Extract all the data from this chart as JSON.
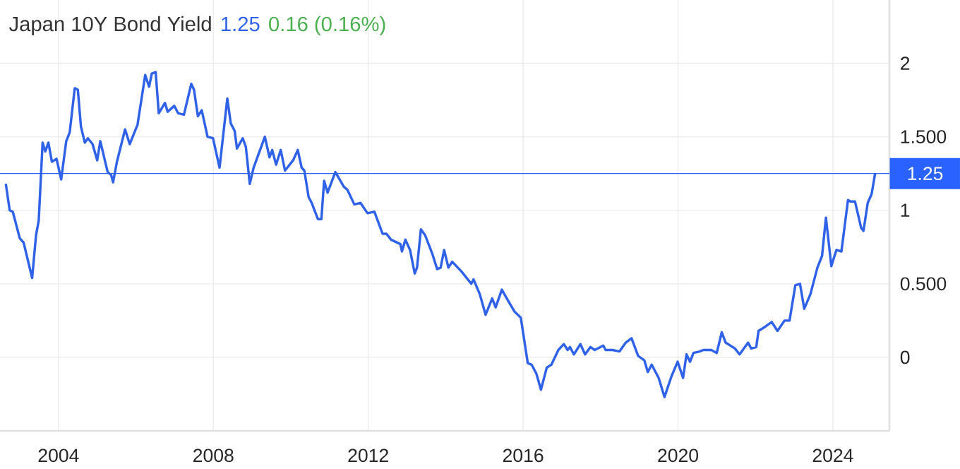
{
  "chart_data": {
    "type": "line",
    "title": "Japan 10Y Bond Yield",
    "annotations": [
      "1.25",
      "0.16 (0.16%)"
    ],
    "x": [
      2002.64,
      2002.74,
      2002.82,
      2003.0,
      2003.1,
      2003.32,
      2003.42,
      2003.49,
      2003.59,
      2003.66,
      2003.74,
      2003.83,
      2003.95,
      2004.07,
      2004.2,
      2004.29,
      2004.42,
      2004.5,
      2004.58,
      2004.68,
      2004.76,
      2004.88,
      2005.0,
      2005.08,
      2005.27,
      2005.36,
      2005.41,
      2005.51,
      2005.72,
      2005.84,
      2006.04,
      2006.24,
      2006.34,
      2006.41,
      2006.51,
      2006.59,
      2006.75,
      2006.82,
      2006.99,
      2007.09,
      2007.24,
      2007.43,
      2007.5,
      2007.6,
      2007.7,
      2007.85,
      2007.99,
      2008.16,
      2008.36,
      2008.45,
      2008.55,
      2008.61,
      2008.76,
      2008.84,
      2008.94,
      2009.04,
      2009.33,
      2009.45,
      2009.52,
      2009.62,
      2009.74,
      2009.85,
      2010.06,
      2010.18,
      2010.28,
      2010.35,
      2010.46,
      2010.54,
      2010.7,
      2010.79,
      2010.86,
      2010.95,
      2011.15,
      2011.37,
      2011.46,
      2011.64,
      2011.8,
      2011.98,
      2012.16,
      2012.37,
      2012.47,
      2012.59,
      2012.83,
      2012.87,
      2012.96,
      2013.08,
      2013.2,
      2013.26,
      2013.36,
      2013.47,
      2013.66,
      2013.78,
      2013.87,
      2013.96,
      2014.07,
      2014.17,
      2014.42,
      2014.66,
      2014.72,
      2014.88,
      2015.03,
      2015.2,
      2015.29,
      2015.45,
      2015.6,
      2015.78,
      2015.94,
      2016.12,
      2016.22,
      2016.34,
      2016.46,
      2016.61,
      2016.73,
      2016.91,
      2017.05,
      2017.15,
      2017.21,
      2017.31,
      2017.48,
      2017.6,
      2017.74,
      2017.85,
      2018.07,
      2018.13,
      2018.31,
      2018.49,
      2018.65,
      2018.8,
      2018.97,
      2019.13,
      2019.22,
      2019.32,
      2019.5,
      2019.65,
      2019.83,
      2019.99,
      2020.13,
      2020.22,
      2020.31,
      2020.4,
      2020.56,
      2020.65,
      2020.86,
      2021.0,
      2021.13,
      2021.23,
      2021.47,
      2021.59,
      2021.81,
      2021.89,
      2022.02,
      2022.08,
      2022.26,
      2022.42,
      2022.57,
      2022.75,
      2022.88,
      2023.03,
      2023.15,
      2023.26,
      2023.42,
      2023.6,
      2023.72,
      2023.82,
      2023.96,
      2024.09,
      2024.22,
      2024.39,
      2024.45,
      2024.57,
      2024.73,
      2024.79,
      2024.9,
      2025.0,
      2025.09
    ],
    "series": [
      {
        "color": "#2f62e6",
        "values": [
          1.18,
          1.0,
          0.99,
          0.81,
          0.78,
          0.54,
          0.83,
          0.93,
          1.46,
          1.4,
          1.46,
          1.33,
          1.35,
          1.21,
          1.47,
          1.53,
          1.83,
          1.82,
          1.57,
          1.46,
          1.49,
          1.45,
          1.34,
          1.47,
          1.26,
          1.24,
          1.19,
          1.33,
          1.55,
          1.45,
          1.58,
          1.92,
          1.84,
          1.93,
          1.94,
          1.66,
          1.73,
          1.67,
          1.71,
          1.66,
          1.65,
          1.86,
          1.82,
          1.64,
          1.68,
          1.5,
          1.49,
          1.29,
          1.76,
          1.59,
          1.54,
          1.42,
          1.49,
          1.43,
          1.18,
          1.29,
          1.5,
          1.36,
          1.41,
          1.31,
          1.41,
          1.27,
          1.34,
          1.41,
          1.29,
          1.27,
          1.09,
          1.05,
          0.94,
          0.94,
          1.2,
          1.12,
          1.26,
          1.16,
          1.14,
          1.04,
          1.05,
          0.98,
          0.99,
          0.84,
          0.84,
          0.8,
          0.77,
          0.72,
          0.8,
          0.73,
          0.57,
          0.61,
          0.87,
          0.83,
          0.7,
          0.6,
          0.61,
          0.73,
          0.61,
          0.65,
          0.58,
          0.5,
          0.53,
          0.43,
          0.29,
          0.4,
          0.34,
          0.46,
          0.39,
          0.31,
          0.27,
          -0.04,
          -0.05,
          -0.11,
          -0.22,
          -0.07,
          -0.05,
          0.05,
          0.09,
          0.05,
          0.07,
          0.02,
          0.09,
          0.02,
          0.07,
          0.05,
          0.08,
          0.05,
          0.05,
          0.04,
          0.1,
          0.13,
          0.01,
          -0.02,
          -0.1,
          -0.05,
          -0.14,
          -0.27,
          -0.13,
          -0.03,
          -0.14,
          0.02,
          -0.03,
          0.03,
          0.04,
          0.05,
          0.05,
          0.03,
          0.17,
          0.1,
          0.06,
          0.02,
          0.1,
          0.06,
          0.07,
          0.18,
          0.21,
          0.24,
          0.18,
          0.25,
          0.25,
          0.49,
          0.5,
          0.33,
          0.43,
          0.61,
          0.69,
          0.95,
          0.62,
          0.73,
          0.72,
          1.07,
          1.06,
          1.06,
          0.88,
          0.86,
          1.05,
          1.11,
          1.25
        ]
      }
    ],
    "xlim": [
      2002.49,
      2025.46
    ],
    "ylim": [
      -0.5,
      2.43
    ],
    "xticks": [
      2004,
      2008,
      2012,
      2016,
      2020,
      2024
    ],
    "yticks": [
      0,
      {
        "value": 0.5,
        "label": "0.500"
      },
      1,
      {
        "value": 1.5,
        "label": "1.500"
      },
      2
    ],
    "ref_lines": [
      {
        "axis": "y",
        "value": 1.25,
        "label": "1.25",
        "color": "#2962ff"
      }
    ],
    "grid": true,
    "legend": false,
    "marker": "none",
    "line_style": "solid"
  }
}
